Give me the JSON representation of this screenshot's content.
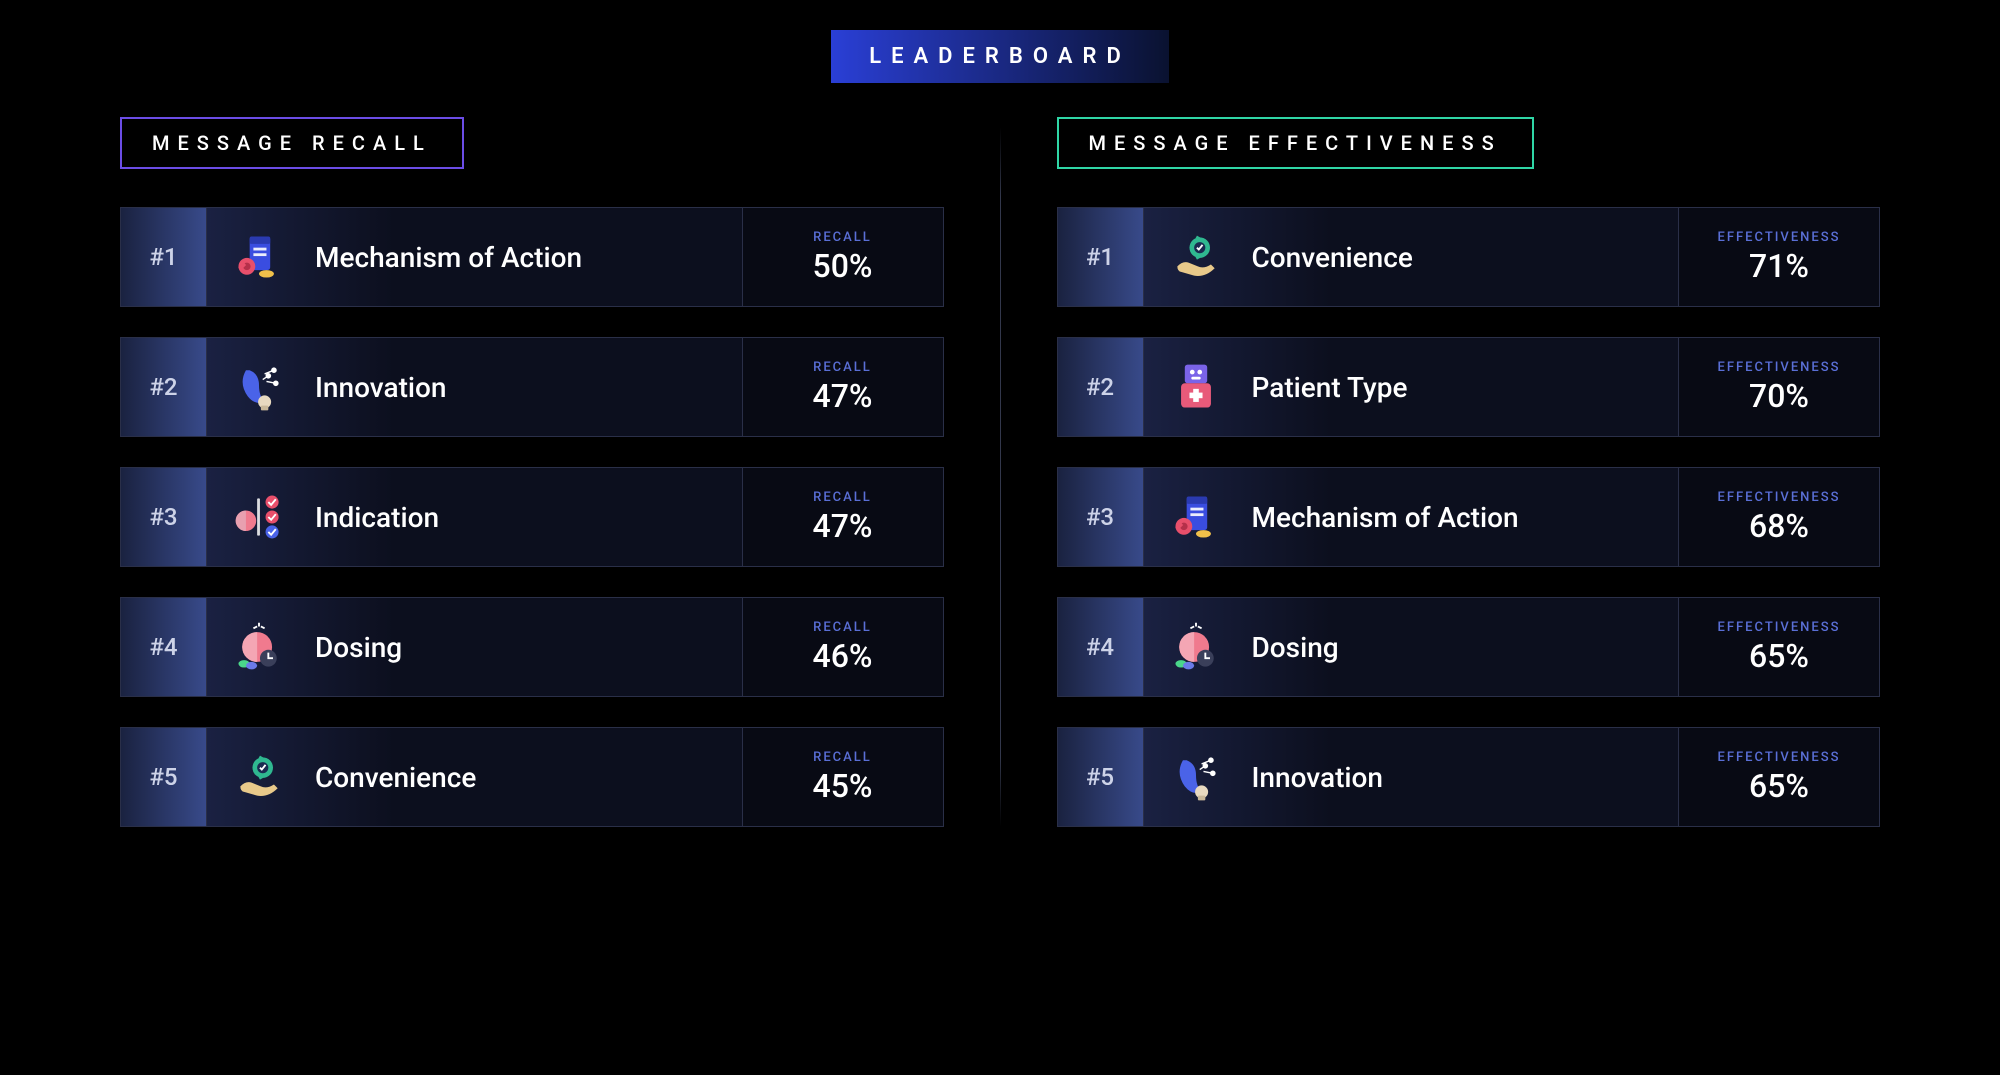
{
  "page_title": "LEADERBOARD",
  "title_gradient": {
    "from": "#2a3fd6",
    "to": "#0a1230"
  },
  "background_color": "#000000",
  "card_border_color": "#2a2f48",
  "rank_gradient": {
    "from": "#1a2240",
    "to": "#384a8a"
  },
  "columns": [
    {
      "key": "recall",
      "title": "MESSAGE RECALL",
      "title_border_color": "#6b4de6",
      "metric_caption": "RECALL",
      "metric_caption_color": "#5a6fd6",
      "rows": [
        {
          "rank": "#1",
          "label": "Mechanism of Action",
          "value": "50%",
          "icon": "mechanism"
        },
        {
          "rank": "#2",
          "label": "Innovation",
          "value": "47%",
          "icon": "innovation"
        },
        {
          "rank": "#3",
          "label": "Indication",
          "value": "47%",
          "icon": "indication"
        },
        {
          "rank": "#4",
          "label": "Dosing",
          "value": "46%",
          "icon": "dosing"
        },
        {
          "rank": "#5",
          "label": "Convenience",
          "value": "45%",
          "icon": "convenience"
        }
      ]
    },
    {
      "key": "effectiveness",
      "title": "MESSAGE EFFECTIVENESS",
      "title_border_color": "#2fd6a6",
      "metric_caption": "EFFECTIVENESS",
      "metric_caption_color": "#5a6fd6",
      "rows": [
        {
          "rank": "#1",
          "label": "Convenience",
          "value": "71%",
          "icon": "convenience"
        },
        {
          "rank": "#2",
          "label": "Patient Type",
          "value": "70%",
          "icon": "patient"
        },
        {
          "rank": "#3",
          "label": "Mechanism of Action",
          "value": "68%",
          "icon": "mechanism"
        },
        {
          "rank": "#4",
          "label": "Dosing",
          "value": "65%",
          "icon": "dosing"
        },
        {
          "rank": "#5",
          "label": "Innovation",
          "value": "65%",
          "icon": "innovation"
        }
      ]
    }
  ],
  "icons": {
    "mechanism": {
      "type": "mechanism",
      "colors": {
        "a": "#3a4de0",
        "b": "#e84f6b",
        "c": "#f0c04a"
      }
    },
    "innovation": {
      "type": "innovation",
      "colors": {
        "a": "#4a63e8",
        "b": "#e8d9c0",
        "c": "#ffffff"
      }
    },
    "indication": {
      "type": "indication",
      "colors": {
        "a": "#f07a8e",
        "b": "#e84f6b",
        "c": "#4a63e8"
      }
    },
    "dosing": {
      "type": "dosing",
      "colors": {
        "a": "#f07a8e",
        "b": "#4ad68a",
        "c": "#6a7ae8",
        "d": "#3a3f5a"
      }
    },
    "convenience": {
      "type": "convenience",
      "colors": {
        "a": "#e8c98a",
        "b": "#2fb890",
        "c": "#1a2a50"
      }
    },
    "patient": {
      "type": "patient",
      "colors": {
        "a": "#e85a7a",
        "b": "#7a63e8",
        "c": "#ffffff"
      }
    }
  }
}
